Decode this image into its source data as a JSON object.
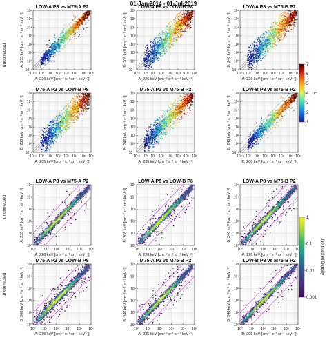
{
  "figure_title": "01-Jan-2014 - 01-Jul-2019",
  "row_label": "uncorrected",
  "colorbars": {
    "top": {
      "label": "L",
      "ticks": [
        "7",
        "6",
        "5",
        "4",
        "3",
        "2",
        "1"
      ],
      "colors": [
        "#3e0a00",
        "#c21a1a",
        "#f0641a",
        "#f5c21c",
        "#d6f25c",
        "#5ce4ae",
        "#1fb0d6",
        "#1b5fd0",
        "#13188a"
      ]
    },
    "bottom": {
      "label": "Normalized Density",
      "ticks": [
        "1",
        "0.1",
        "0.01",
        "0.001"
      ],
      "colors": [
        "#f5f01f",
        "#a8d83a",
        "#48bb6a",
        "#1f9a8a",
        "#2c6f8e",
        "#3b4b8c",
        "#452c78",
        "#3a0a5c"
      ]
    }
  },
  "chart_data": [
    {
      "type": "scatter",
      "title": "LOW-A P8 vs M75-A P2",
      "xlabel": "A: 226 keV [cm⁻² s⁻¹ sr⁻¹ keV⁻¹]",
      "ylabel": "A: 235 keV [cm⁻² s⁻¹ sr⁻¹ keV⁻¹]",
      "xlim": [
        0.1,
        1000000
      ],
      "ylim": [
        0.1,
        1000000
      ],
      "log_scale": true,
      "grid": true,
      "spread": 0.35,
      "sparse": 0.05,
      "color_by": "L"
    },
    {
      "type": "scatter",
      "title": "LOW-A P8 vs LOW-B P8",
      "xlabel": "A: 226 keV [cm⁻² s⁻¹ sr⁻¹ keV⁻¹]",
      "ylabel": "B: 208 keV [cm⁻² s⁻¹ sr⁻¹ keV⁻¹]",
      "xlim": [
        0.1,
        1000000
      ],
      "ylim": [
        0.1,
        1000000
      ],
      "log_scale": true,
      "grid": true,
      "spread": 0.55,
      "sparse": 0.35,
      "color_by": "L"
    },
    {
      "type": "scatter",
      "title": "LOW-A P8 vs M75-B P2",
      "xlabel": "A: 226 keV [cm⁻² s⁻¹ sr⁻¹ keV⁻¹]",
      "ylabel": "B: 246 keV [cm⁻² s⁻¹ sr⁻¹ keV⁻¹]",
      "xlim": [
        0.1,
        1000000
      ],
      "ylim": [
        0.1,
        1000000
      ],
      "log_scale": true,
      "grid": true,
      "spread": 0.55,
      "sparse": 0.3,
      "color_by": "L"
    },
    {
      "type": "scatter",
      "title": "M75-A P2 vs LOW-B P8",
      "xlabel": "A: 235 keV [cm⁻² s⁻¹ sr⁻¹ keV⁻¹]",
      "ylabel": "B: 208 keV [cm⁻² s⁻¹ sr⁻¹ keV⁻¹]",
      "xlim": [
        0.1,
        1000000
      ],
      "ylim": [
        0.1,
        1000000
      ],
      "log_scale": true,
      "grid": true,
      "spread": 0.55,
      "sparse": 0.35,
      "color_by": "L"
    },
    {
      "type": "scatter",
      "title": "M75-A P2 vs M75-B P2",
      "xlabel": "A: 235 keV [cm⁻² s⁻¹ sr⁻¹ keV⁻¹]",
      "ylabel": "B: 246 keV [cm⁻² s⁻¹ sr⁻¹ keV⁻¹]",
      "xlim": [
        0.1,
        1000000
      ],
      "ylim": [
        0.1,
        1000000
      ],
      "log_scale": true,
      "grid": true,
      "spread": 0.45,
      "sparse": 0.25,
      "color_by": "L"
    },
    {
      "type": "scatter",
      "title": "LOW-B P8 vs M75-B P2",
      "xlabel": "B: 208 keV [cm⁻² s⁻¹ sr⁻¹ keV⁻¹]",
      "ylabel": "B: 246 keV [cm⁻² s⁻¹ sr⁻¹ keV⁻¹]",
      "xlim": [
        0.1,
        1000000
      ],
      "ylim": [
        0.1,
        1000000
      ],
      "log_scale": true,
      "grid": true,
      "spread": 0.35,
      "sparse": 0.05,
      "color_by": "L"
    },
    {
      "type": "heatmap",
      "title": "LOW-A P8 vs M75-A P2",
      "xlabel": "A: 226 keV [cm⁻² s⁻¹ sr⁻¹ keV⁻¹]",
      "ylabel": "A: 235 keV [cm⁻² s⁻¹ sr⁻¹ keV⁻¹]",
      "xlim": [
        1,
        100000
      ],
      "ylim": [
        1,
        100000
      ],
      "log_scale": true,
      "grid": true,
      "spread": 0.18,
      "sparse": 0.05,
      "color_by": "Normalized Density"
    },
    {
      "type": "heatmap",
      "title": "LOW-A P8 vs LOW-B P8",
      "xlabel": "A: 226 keV [cm⁻² s⁻¹ sr⁻¹ keV⁻¹]",
      "ylabel": "B: 208 keV [cm⁻² s⁻¹ sr⁻¹ keV⁻¹]",
      "xlim": [
        1,
        100000
      ],
      "ylim": [
        1,
        100000
      ],
      "log_scale": true,
      "grid": true,
      "spread": 0.2,
      "sparse": 0.1,
      "color_by": "Normalized Density"
    },
    {
      "type": "heatmap",
      "title": "LOW-A P8 vs M75-B P2",
      "xlabel": "A: 226 keV [cm⁻² s⁻¹ sr⁻¹ keV⁻¹]",
      "ylabel": "B: 246 keV [cm⁻² s⁻¹ sr⁻¹ keV⁻¹]",
      "xlim": [
        1,
        100000
      ],
      "ylim": [
        1,
        100000
      ],
      "log_scale": true,
      "grid": true,
      "spread": 0.2,
      "sparse": 0.1,
      "color_by": "Normalized Density"
    },
    {
      "type": "heatmap",
      "title": "M75-A P2 vs LOW-B P8",
      "xlabel": "A: 235 keV [cm⁻² s⁻¹ sr⁻¹ keV⁻¹]",
      "ylabel": "B: 208 keV [cm⁻² s⁻¹ sr⁻¹ keV⁻¹]",
      "xlim": [
        1,
        100000
      ],
      "ylim": [
        1,
        100000
      ],
      "log_scale": true,
      "grid": true,
      "spread": 0.22,
      "sparse": 0.15,
      "color_by": "Normalized Density"
    },
    {
      "type": "heatmap",
      "title": "M75-A P2 vs M75-B P2",
      "xlabel": "A: 235 keV [cm⁻² s⁻¹ sr⁻¹ keV⁻¹]",
      "ylabel": "B: 246 keV [cm⁻² s⁻¹ sr⁻¹ keV⁻¹]",
      "xlim": [
        1,
        100000
      ],
      "ylim": [
        1,
        100000
      ],
      "log_scale": true,
      "grid": true,
      "spread": 0.18,
      "sparse": 0.1,
      "color_by": "Normalized Density"
    },
    {
      "type": "heatmap",
      "title": "LOW-B P8 vs M75-B P2",
      "xlabel": "B: 208 keV [cm⁻² s⁻¹ sr⁻¹ keV⁻¹]",
      "ylabel": "B: 246 keV [cm⁻² s⁻¹ sr⁻¹ keV⁻¹]",
      "xlim": [
        1,
        100000
      ],
      "ylim": [
        1,
        100000
      ],
      "log_scale": true,
      "grid": true,
      "spread": 0.16,
      "sparse": 0.05,
      "color_by": "Normalized Density"
    }
  ]
}
